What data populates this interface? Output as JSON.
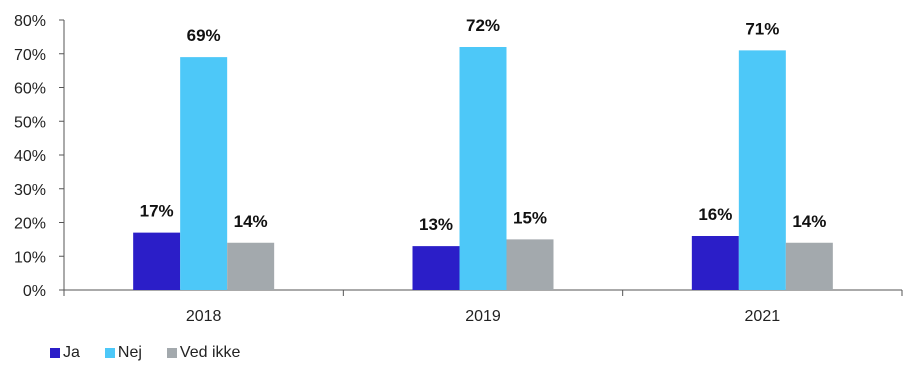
{
  "chart_data": {
    "type": "bar",
    "title": "",
    "xlabel": "",
    "ylabel": "",
    "categories": [
      "2018",
      "2019",
      "2021"
    ],
    "ylim": [
      0,
      80
    ],
    "yticks": [
      0,
      10,
      20,
      30,
      40,
      50,
      60,
      70,
      80
    ],
    "ytick_labels": [
      "0%",
      "10%",
      "20%",
      "30%",
      "40%",
      "50%",
      "60%",
      "70%",
      "80%"
    ],
    "grid": false,
    "legend_position": "bottom-left",
    "series": [
      {
        "name": "Ja",
        "color": "#2b1ec8",
        "values": [
          17,
          13,
          16
        ],
        "labels": [
          "17%",
          "13%",
          "16%"
        ]
      },
      {
        "name": "Nej",
        "color": "#4dc8f8",
        "values": [
          69,
          72,
          71
        ],
        "labels": [
          "69%",
          "72%",
          "71%"
        ]
      },
      {
        "name": "Ved ikke",
        "color": "#a3a9ad",
        "values": [
          14,
          15,
          14
        ],
        "labels": [
          "14%",
          "15%",
          "14%"
        ]
      }
    ]
  }
}
